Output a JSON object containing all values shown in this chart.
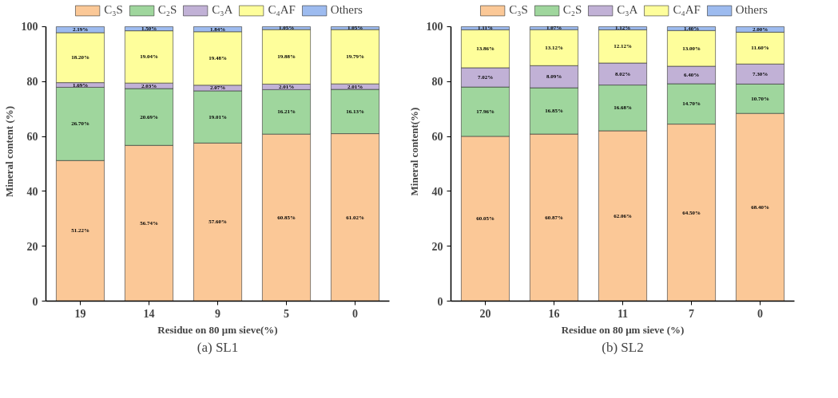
{
  "chart_data": [
    {
      "type": "bar",
      "stacked": true,
      "title": "(a) SL1",
      "xlabel": "Residue on 80 μm sieve(%)",
      "ylabel": "Mineral content (%)",
      "categories": [
        "19",
        "14",
        "9",
        "5",
        "0"
      ],
      "ylim": [
        0,
        100
      ],
      "yticks": [
        0,
        20,
        40,
        60,
        80,
        100
      ],
      "grid": false,
      "legend": "top",
      "series": [
        {
          "name": "C₃S",
          "color": "#fbc897",
          "values": [
            51.22,
            56.74,
            57.6,
            60.85,
            61.02
          ],
          "value_labels": [
            "51.22%",
            "56.74%",
            "57.60%",
            "60.85%",
            "61.02%"
          ]
        },
        {
          "name": "C₂S",
          "color": "#9fd69d",
          "values": [
            26.7,
            20.69,
            19.01,
            16.21,
            16.13
          ],
          "value_labels": [
            "26.70%",
            "20.69%",
            "19.01%",
            "16.21%",
            "16.13%"
          ]
        },
        {
          "name": "C₃A",
          "color": "#c1b1d6",
          "values": [
            1.69,
            2.03,
            2.07,
            2.01,
            2.01
          ],
          "value_labels": [
            "1.69%",
            "2.03%",
            "2.07%",
            "2.01%",
            "2.01%"
          ]
        },
        {
          "name": "C₄AF",
          "color": "#fefe9b",
          "values": [
            18.2,
            19.04,
            19.48,
            19.88,
            19.79
          ],
          "value_labels": [
            "18.20%",
            "19.04%",
            "19.48%",
            "19.88%",
            "19.79%"
          ]
        },
        {
          "name": "Others",
          "color": "#9dbbef",
          "values": [
            2.19,
            1.5,
            1.84,
            1.05,
            1.05
          ],
          "value_labels": [
            "2.19%",
            "1.50%",
            "1.84%",
            "1.05%",
            "1.05%"
          ]
        }
      ]
    },
    {
      "type": "bar",
      "stacked": true,
      "title": "(b) SL2",
      "xlabel": "Residue on 80 μm sieve (%)",
      "ylabel": "Mineral content(%)",
      "categories": [
        "20",
        "16",
        "11",
        "7",
        "0"
      ],
      "ylim": [
        0,
        100
      ],
      "yticks": [
        0,
        20,
        40,
        60,
        80,
        100
      ],
      "grid": false,
      "legend": "top",
      "series": [
        {
          "name": "C₃S",
          "color": "#fbc897",
          "values": [
            60.05,
            60.87,
            62.06,
            64.5,
            68.4
          ],
          "value_labels": [
            "60.05%",
            "60.87%",
            "62.06%",
            "64.50%",
            "68.40%"
          ]
        },
        {
          "name": "C₂S",
          "color": "#9fd69d",
          "values": [
            17.96,
            16.85,
            16.68,
            14.7,
            10.7
          ],
          "value_labels": [
            "17.96%",
            "16.85%",
            "16.68%",
            "14.70%",
            "10.70%"
          ]
        },
        {
          "name": "C₃A",
          "color": "#c1b1d6",
          "values": [
            7.02,
            8.09,
            8.02,
            6.4,
            7.3
          ],
          "value_labels": [
            "7.02%",
            "8.09%",
            "8.02%",
            "6.40%",
            "7.30%"
          ]
        },
        {
          "name": "C₄AF",
          "color": "#fefe9b",
          "values": [
            13.86,
            13.12,
            12.12,
            13.0,
            11.6
          ],
          "value_labels": [
            "13.86%",
            "13.12%",
            "12.12%",
            "13.00%",
            "11.60%"
          ]
        },
        {
          "name": "Others",
          "color": "#9dbbef",
          "values": [
            1.11,
            1.07,
            1.12,
            1.4,
            2.0
          ],
          "value_labels": [
            "1.11%",
            "1.07%",
            "1.12%",
            "1.40%",
            "2.00%"
          ]
        }
      ]
    }
  ]
}
